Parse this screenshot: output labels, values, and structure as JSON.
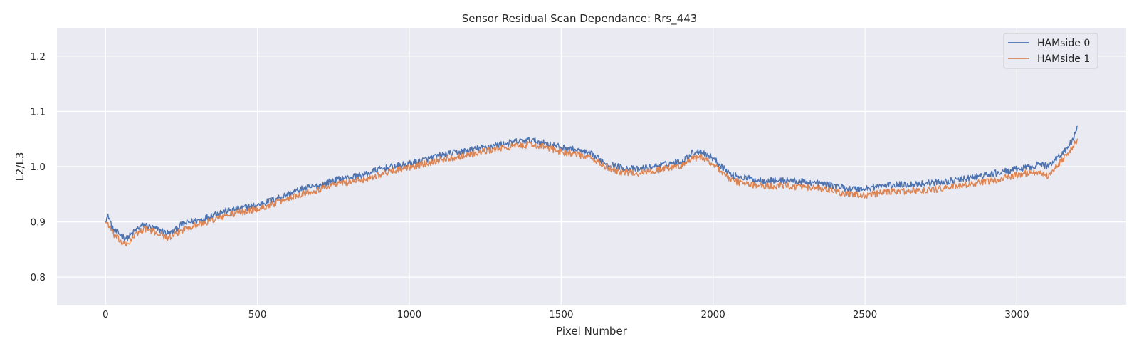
{
  "chart_data": {
    "type": "line",
    "title": "Sensor Residual Scan Dependance: Rrs_443",
    "xlabel": "Pixel Number",
    "ylabel": "L2/L3",
    "xlim": [
      -160,
      3360
    ],
    "ylim": [
      0.75,
      1.25
    ],
    "xticks": [
      0,
      500,
      1000,
      1500,
      2000,
      2500,
      3000
    ],
    "yticks": [
      0.8,
      0.9,
      1.0,
      1.1,
      1.2
    ],
    "grid": true,
    "legend_position": "top-right",
    "series": [
      {
        "name": "HAMside 0",
        "color": "#4c72b0",
        "noise": 0.006,
        "x": [
          0,
          10,
          25,
          40,
          55,
          70,
          90,
          110,
          130,
          150,
          180,
          200,
          220,
          250,
          280,
          320,
          360,
          400,
          450,
          500,
          550,
          600,
          650,
          700,
          750,
          800,
          850,
          900,
          950,
          1000,
          1050,
          1100,
          1150,
          1200,
          1250,
          1300,
          1350,
          1400,
          1450,
          1500,
          1550,
          1600,
          1650,
          1700,
          1750,
          1800,
          1850,
          1900,
          1930,
          1960,
          2000,
          2030,
          2060,
          2100,
          2150,
          2200,
          2250,
          2300,
          2350,
          2400,
          2450,
          2500,
          2550,
          2600,
          2650,
          2700,
          2750,
          2800,
          2850,
          2900,
          2950,
          3000,
          3050,
          3080,
          3100,
          3130,
          3160,
          3180,
          3200
        ],
        "y": [
          0.905,
          0.91,
          0.885,
          0.88,
          0.875,
          0.87,
          0.88,
          0.89,
          0.895,
          0.89,
          0.885,
          0.88,
          0.88,
          0.895,
          0.9,
          0.905,
          0.915,
          0.92,
          0.925,
          0.93,
          0.94,
          0.95,
          0.96,
          0.965,
          0.975,
          0.98,
          0.985,
          0.995,
          1.0,
          1.005,
          1.012,
          1.02,
          1.025,
          1.03,
          1.035,
          1.04,
          1.045,
          1.048,
          1.042,
          1.035,
          1.03,
          1.022,
          1.005,
          0.998,
          0.995,
          1.0,
          1.005,
          1.01,
          1.025,
          1.028,
          1.015,
          1.0,
          0.985,
          0.98,
          0.975,
          0.975,
          0.975,
          0.972,
          0.97,
          0.965,
          0.96,
          0.96,
          0.965,
          0.967,
          0.968,
          0.97,
          0.972,
          0.975,
          0.98,
          0.985,
          0.99,
          0.995,
          1.0,
          1.005,
          1.0,
          1.015,
          1.03,
          1.045,
          1.07
        ]
      },
      {
        "name": "HAMside 1",
        "color": "#dd8452",
        "noise": 0.006,
        "x": [
          0,
          10,
          25,
          40,
          55,
          70,
          90,
          110,
          130,
          150,
          180,
          200,
          220,
          250,
          280,
          320,
          360,
          400,
          450,
          500,
          550,
          600,
          650,
          700,
          750,
          800,
          850,
          900,
          950,
          1000,
          1050,
          1100,
          1150,
          1200,
          1250,
          1300,
          1350,
          1400,
          1450,
          1500,
          1550,
          1600,
          1650,
          1700,
          1750,
          1800,
          1850,
          1900,
          1930,
          1960,
          2000,
          2030,
          2060,
          2100,
          2150,
          2200,
          2250,
          2300,
          2350,
          2400,
          2450,
          2500,
          2550,
          2600,
          2650,
          2700,
          2750,
          2800,
          2850,
          2900,
          2950,
          3000,
          3050,
          3080,
          3100,
          3130,
          3160,
          3180,
          3200
        ],
        "y": [
          0.9,
          0.895,
          0.878,
          0.87,
          0.862,
          0.858,
          0.872,
          0.882,
          0.888,
          0.884,
          0.878,
          0.872,
          0.872,
          0.885,
          0.892,
          0.897,
          0.905,
          0.912,
          0.918,
          0.923,
          0.932,
          0.942,
          0.952,
          0.958,
          0.968,
          0.972,
          0.977,
          0.985,
          0.993,
          0.998,
          1.005,
          1.012,
          1.017,
          1.022,
          1.028,
          1.033,
          1.037,
          1.04,
          1.035,
          1.027,
          1.022,
          1.015,
          0.998,
          0.99,
          0.988,
          0.992,
          0.997,
          1.002,
          1.014,
          1.017,
          1.005,
          0.99,
          0.975,
          0.97,
          0.965,
          0.965,
          0.965,
          0.962,
          0.96,
          0.955,
          0.95,
          0.948,
          0.952,
          0.955,
          0.956,
          0.957,
          0.96,
          0.965,
          0.968,
          0.972,
          0.978,
          0.985,
          0.99,
          0.99,
          0.982,
          1.0,
          1.018,
          1.032,
          1.05
        ]
      }
    ]
  }
}
